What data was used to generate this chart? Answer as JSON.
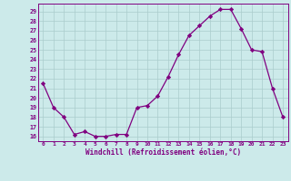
{
  "x": [
    0,
    1,
    2,
    3,
    4,
    5,
    6,
    7,
    8,
    9,
    10,
    11,
    12,
    13,
    14,
    15,
    16,
    17,
    18,
    19,
    20,
    21,
    22,
    23
  ],
  "y": [
    21.5,
    19.0,
    18.0,
    16.2,
    16.5,
    16.0,
    16.0,
    16.2,
    16.2,
    19.0,
    19.2,
    20.2,
    22.2,
    24.5,
    26.5,
    27.5,
    28.5,
    29.2,
    29.2,
    27.2,
    25.0,
    24.8,
    21.0,
    18.0
  ],
  "line_color": "#800080",
  "marker": "D",
  "marker_size": 2.2,
  "bg_color": "#cceaea",
  "grid_color": "#aacccc",
  "xlabel": "Windchill (Refroidissement éolien,°C)",
  "ylabel_ticks": [
    16,
    17,
    18,
    19,
    20,
    21,
    22,
    23,
    24,
    25,
    26,
    27,
    28,
    29
  ],
  "ylim": [
    15.5,
    29.8
  ],
  "xlim": [
    -0.5,
    23.5
  ]
}
